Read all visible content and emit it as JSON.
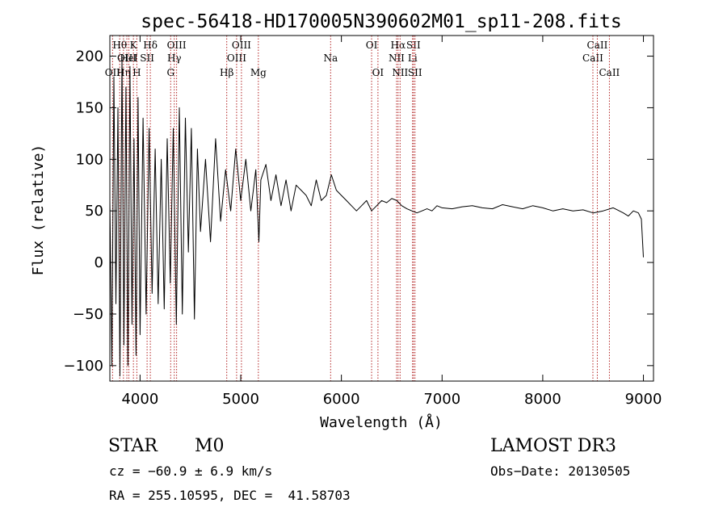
{
  "chart_data": {
    "type": "line",
    "title": "spec-56418-HD170005N390602M01_sp11-208.fits",
    "xlabel": "Wavelength (Å)",
    "ylabel": "Flux (relative)",
    "xlim": [
      3700,
      9100
    ],
    "ylim": [
      -115,
      220
    ],
    "xticks": [
      4000,
      5000,
      6000,
      7000,
      8000,
      9000
    ],
    "yticks": [
      -100,
      -50,
      0,
      50,
      100,
      150,
      200
    ],
    "series": [
      {
        "name": "flux",
        "x": [
          3700,
          3720,
          3740,
          3760,
          3780,
          3800,
          3820,
          3840,
          3860,
          3880,
          3900,
          3920,
          3940,
          3960,
          3980,
          4000,
          4030,
          4060,
          4090,
          4120,
          4150,
          4180,
          4210,
          4240,
          4270,
          4300,
          4330,
          4360,
          4390,
          4420,
          4450,
          4480,
          4510,
          4540,
          4570,
          4600,
          4650,
          4700,
          4750,
          4800,
          4850,
          4900,
          4950,
          5000,
          5050,
          5100,
          5150,
          5180,
          5200,
          5250,
          5300,
          5350,
          5400,
          5450,
          5500,
          5550,
          5600,
          5650,
          5700,
          5750,
          5800,
          5850,
          5900,
          5950,
          6000,
          6050,
          6100,
          6150,
          6200,
          6250,
          6300,
          6350,
          6400,
          6450,
          6500,
          6550,
          6600,
          6650,
          6700,
          6750,
          6800,
          6850,
          6900,
          6950,
          7000,
          7100,
          7200,
          7300,
          7400,
          7500,
          7600,
          7700,
          7800,
          7900,
          8000,
          8100,
          8200,
          8300,
          8400,
          8500,
          8600,
          8700,
          8800,
          8850,
          8900,
          8950,
          8980,
          9000
        ],
        "y": [
          60,
          -100,
          180,
          -40,
          150,
          -110,
          200,
          -80,
          170,
          -100,
          190,
          -60,
          120,
          -90,
          160,
          -70,
          140,
          -50,
          130,
          -30,
          110,
          -40,
          100,
          -45,
          120,
          -20,
          130,
          -60,
          150,
          -50,
          140,
          10,
          130,
          -55,
          110,
          30,
          100,
          20,
          120,
          40,
          90,
          50,
          110,
          60,
          100,
          50,
          90,
          20,
          80,
          95,
          60,
          85,
          55,
          80,
          50,
          75,
          70,
          65,
          55,
          80,
          60,
          65,
          85,
          70,
          65,
          60,
          55,
          50,
          55,
          60,
          50,
          55,
          60,
          58,
          62,
          60,
          55,
          52,
          50,
          48,
          50,
          52,
          50,
          55,
          53,
          52,
          54,
          55,
          53,
          52,
          56,
          54,
          52,
          55,
          53,
          50,
          52,
          50,
          51,
          48,
          50,
          53,
          48,
          45,
          50,
          48,
          42,
          5
        ]
      }
    ],
    "emission_lines": [
      {
        "label": "OII",
        "wl": 3727,
        "row": 3
      },
      {
        "label": "Hθ",
        "wl": 3798,
        "row": 1
      },
      {
        "label": "Hη",
        "wl": 3835,
        "row": 3
      },
      {
        "label": "OIII",
        "wl": 3869,
        "row": 2
      },
      {
        "label": "HeI",
        "wl": 3889,
        "row": 2
      },
      {
        "label": "K",
        "wl": 3934,
        "row": 1
      },
      {
        "label": "H",
        "wl": 3968,
        "row": 3
      },
      {
        "label": "SII",
        "wl": 4070,
        "row": 2
      },
      {
        "label": "Hδ",
        "wl": 4102,
        "row": 1
      },
      {
        "label": "G",
        "wl": 4304,
        "row": 3
      },
      {
        "label": "Hγ",
        "wl": 4340,
        "row": 2
      },
      {
        "label": "OIII",
        "wl": 4363,
        "row": 1
      },
      {
        "label": "Hβ",
        "wl": 4861,
        "row": 3
      },
      {
        "label": "OIII",
        "wl": 4959,
        "row": 2
      },
      {
        "label": "OIII",
        "wl": 5007,
        "row": 1
      },
      {
        "label": "Mg",
        "wl": 5175,
        "row": 3
      },
      {
        "label": "Na",
        "wl": 5893,
        "row": 2
      },
      {
        "label": "OI",
        "wl": 6300,
        "row": 1
      },
      {
        "label": "OI",
        "wl": 6363,
        "row": 3
      },
      {
        "label": "NII",
        "wl": 6548,
        "row": 2
      },
      {
        "label": "Hα",
        "wl": 6563,
        "row": 1
      },
      {
        "label": "NII",
        "wl": 6583,
        "row": 3
      },
      {
        "label": "Li",
        "wl": 6707,
        "row": 2
      },
      {
        "label": "SII",
        "wl": 6716,
        "row": 1
      },
      {
        "label": "SII",
        "wl": 6731,
        "row": 3
      },
      {
        "label": "CaII",
        "wl": 8498,
        "row": 2
      },
      {
        "label": "CaII",
        "wl": 8542,
        "row": 1
      },
      {
        "label": "CaII",
        "wl": 8662,
        "row": 3
      }
    ]
  },
  "info": {
    "class": "STAR",
    "subclass": "M0",
    "survey": "LAMOST DR3",
    "cz": "cz = −60.9 ± 6.9 km/s",
    "obsdate": "Obs−Date: 20130505",
    "coords": "RA = 255.10595, DEC =  41.58703"
  },
  "colors": {
    "line": "#000000",
    "marker": "#b22222"
  }
}
